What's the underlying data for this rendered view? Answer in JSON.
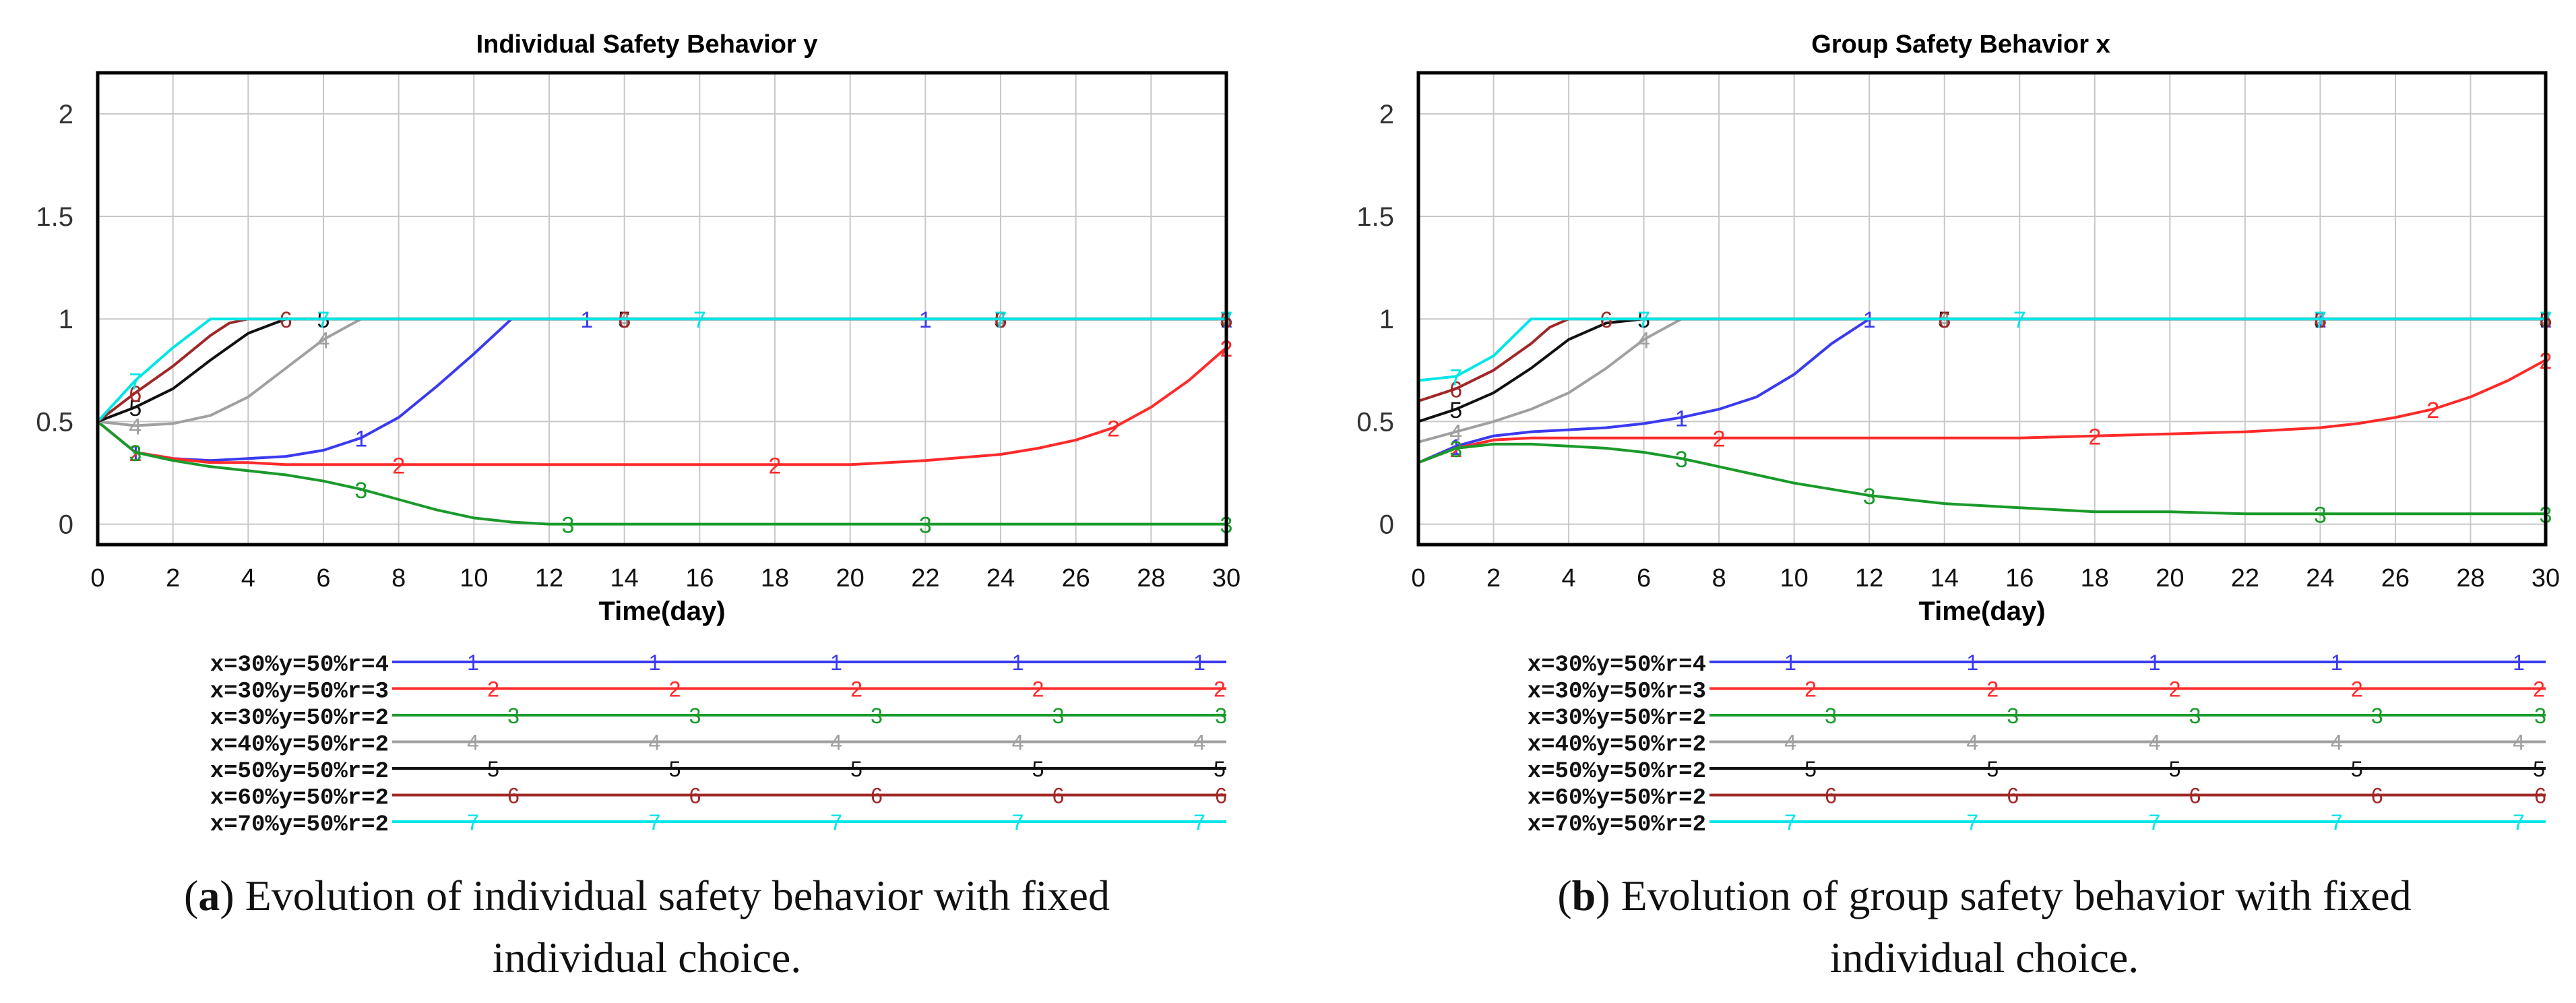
{
  "chart_data": [
    {
      "type": "line",
      "title": "Individual Safety Behavior y",
      "xlabel": "Time(day)",
      "ylabel": "",
      "xlim": [
        0,
        30
      ],
      "ylim": [
        -0.1,
        2.2
      ],
      "x_ticks": [
        "0",
        "2",
        "4",
        "6",
        "8",
        "10",
        "12",
        "14",
        "16",
        "18",
        "20",
        "22",
        "24",
        "26",
        "28",
        "30"
      ],
      "y_ticks": [
        "0",
        "0.5",
        "1",
        "1.5",
        "2"
      ],
      "caption_letter": "a",
      "caption_text": " Evolution of individual safety behavior with fixed individual choice.",
      "caption_lines": [
        "Evolution of individual safety behavior with fixed",
        "individual choice."
      ],
      "series": [
        {
          "id": "1",
          "name": "x=30%y=50%r=4",
          "color": "#3a3af0",
          "x": [
            0,
            1,
            2,
            3,
            4,
            5,
            6,
            7,
            8,
            9,
            10,
            11,
            12,
            13,
            14,
            15,
            16,
            18,
            20,
            22,
            24,
            26,
            28,
            30
          ],
          "y": [
            0.5,
            0.35,
            0.32,
            0.31,
            0.32,
            0.33,
            0.36,
            0.42,
            0.52,
            0.67,
            0.83,
            1.0,
            1.0,
            1.0,
            1.0,
            1.0,
            1.0,
            1.0,
            1.0,
            1.0,
            1.0,
            1.0,
            1.0,
            1.0
          ]
        },
        {
          "id": "2",
          "name": "x=30%y=50%r=3",
          "color": "#ff2a2a",
          "x": [
            0,
            1,
            2,
            3,
            4,
            5,
            6,
            8,
            10,
            12,
            14,
            16,
            18,
            20,
            22,
            24,
            25,
            26,
            27,
            28,
            29,
            30
          ],
          "y": [
            0.5,
            0.35,
            0.32,
            0.3,
            0.3,
            0.29,
            0.29,
            0.29,
            0.29,
            0.29,
            0.29,
            0.29,
            0.29,
            0.29,
            0.31,
            0.34,
            0.37,
            0.41,
            0.47,
            0.57,
            0.7,
            0.86
          ]
        },
        {
          "id": "3",
          "name": "x=30%y=50%r=2",
          "color": "#1a9a2a",
          "x": [
            0,
            1,
            2,
            3,
            4,
            5,
            6,
            7,
            8,
            9,
            10,
            11,
            12,
            12.5,
            14,
            16,
            18,
            20,
            22,
            24,
            26,
            28,
            30
          ],
          "y": [
            0.5,
            0.35,
            0.31,
            0.28,
            0.26,
            0.24,
            0.21,
            0.17,
            0.12,
            0.07,
            0.03,
            0.01,
            0.0,
            0.0,
            0.0,
            0.0,
            0.0,
            0.0,
            0.0,
            0.0,
            0.0,
            0.0,
            0.0
          ]
        },
        {
          "id": "4",
          "name": "x=40%y=50%r=2",
          "color": "#a0a0a0",
          "x": [
            0,
            1,
            2,
            3,
            4,
            5,
            6,
            7,
            8,
            10,
            12,
            14,
            16,
            18,
            20,
            22,
            24,
            26,
            28,
            30
          ],
          "y": [
            0.5,
            0.48,
            0.49,
            0.53,
            0.62,
            0.76,
            0.9,
            1.0,
            1.0,
            1.0,
            1.0,
            1.0,
            1.0,
            1.0,
            1.0,
            1.0,
            1.0,
            1.0,
            1.0,
            1.0
          ]
        },
        {
          "id": "5",
          "name": "x=50%y=50%r=2",
          "color": "#111111",
          "x": [
            0,
            1,
            2,
            3,
            4,
            5,
            6,
            7,
            8,
            10,
            12,
            14,
            16,
            18,
            20,
            22,
            24,
            26,
            28,
            30
          ],
          "y": [
            0.5,
            0.57,
            0.66,
            0.8,
            0.93,
            1.0,
            1.0,
            1.0,
            1.0,
            1.0,
            1.0,
            1.0,
            1.0,
            1.0,
            1.0,
            1.0,
            1.0,
            1.0,
            1.0,
            1.0
          ]
        },
        {
          "id": "6",
          "name": "x=60%y=50%r=2",
          "color": "#a02828",
          "x": [
            0,
            1,
            2,
            3,
            3.5,
            4,
            5,
            6,
            8,
            10,
            12,
            14,
            16,
            18,
            20,
            22,
            24,
            26,
            28,
            30
          ],
          "y": [
            0.5,
            0.64,
            0.77,
            0.92,
            0.98,
            1.0,
            1.0,
            1.0,
            1.0,
            1.0,
            1.0,
            1.0,
            1.0,
            1.0,
            1.0,
            1.0,
            1.0,
            1.0,
            1.0,
            1.0
          ]
        },
        {
          "id": "7",
          "name": "x=70%y=50%r=2",
          "color": "#00e6e6",
          "x": [
            0,
            1,
            2,
            3,
            4,
            6,
            8,
            10,
            12,
            14,
            16,
            18,
            20,
            22,
            24,
            26,
            28,
            30
          ],
          "y": [
            0.5,
            0.7,
            0.86,
            1.0,
            1.0,
            1.0,
            1.0,
            1.0,
            1.0,
            1.0,
            1.0,
            1.0,
            1.0,
            1.0,
            1.0,
            1.0,
            1.0,
            1.0
          ]
        }
      ]
    },
    {
      "type": "line",
      "title": "Group Safety Behavior x",
      "xlabel": "Time(day)",
      "ylabel": "",
      "xlim": [
        0,
        30
      ],
      "ylim": [
        -0.1,
        2.2
      ],
      "x_ticks": [
        "0",
        "2",
        "4",
        "6",
        "8",
        "10",
        "12",
        "14",
        "16",
        "18",
        "20",
        "22",
        "24",
        "26",
        "28",
        "30"
      ],
      "y_ticks": [
        "0",
        "0.5",
        "1",
        "1.5",
        "2"
      ],
      "caption_letter": "b",
      "caption_text": " Evolution of group safety behavior with fixed individual choice.",
      "caption_lines": [
        "Evolution of group safety behavior with fixed",
        "individual choice."
      ],
      "series": [
        {
          "id": "1",
          "name": "x=30%y=50%r=4",
          "color": "#3a3af0",
          "x": [
            0,
            1,
            2,
            3,
            4,
            5,
            6,
            7,
            8,
            9,
            10,
            11,
            12,
            14,
            16,
            18,
            20,
            22,
            24,
            26,
            28,
            30
          ],
          "y": [
            0.3,
            0.38,
            0.43,
            0.45,
            0.46,
            0.47,
            0.49,
            0.52,
            0.56,
            0.62,
            0.73,
            0.88,
            1.0,
            1.0,
            1.0,
            1.0,
            1.0,
            1.0,
            1.0,
            1.0,
            1.0,
            1.0
          ]
        },
        {
          "id": "2",
          "name": "x=30%y=50%r=3",
          "color": "#ff2a2a",
          "x": [
            0,
            1,
            2,
            3,
            4,
            5,
            6,
            8,
            10,
            12,
            14,
            16,
            18,
            20,
            22,
            24,
            25,
            26,
            27,
            28,
            29,
            30
          ],
          "y": [
            0.3,
            0.37,
            0.41,
            0.42,
            0.42,
            0.42,
            0.42,
            0.42,
            0.42,
            0.42,
            0.42,
            0.42,
            0.43,
            0.44,
            0.45,
            0.47,
            0.49,
            0.52,
            0.56,
            0.62,
            0.7,
            0.8
          ]
        },
        {
          "id": "3",
          "name": "x=30%y=50%r=2",
          "color": "#1a9a2a",
          "x": [
            0,
            1,
            2,
            3,
            4,
            5,
            6,
            7,
            8,
            9,
            10,
            11,
            12,
            14,
            16,
            18,
            20,
            22,
            24,
            26,
            28,
            30
          ],
          "y": [
            0.3,
            0.37,
            0.39,
            0.39,
            0.38,
            0.37,
            0.35,
            0.32,
            0.28,
            0.24,
            0.2,
            0.17,
            0.14,
            0.1,
            0.08,
            0.06,
            0.06,
            0.05,
            0.05,
            0.05,
            0.05,
            0.05
          ]
        },
        {
          "id": "4",
          "name": "x=40%y=50%r=2",
          "color": "#a0a0a0",
          "x": [
            0,
            1,
            2,
            3,
            4,
            5,
            6,
            7,
            8,
            10,
            12,
            14,
            16,
            18,
            20,
            22,
            24,
            26,
            28,
            30
          ],
          "y": [
            0.4,
            0.45,
            0.5,
            0.56,
            0.64,
            0.76,
            0.9,
            1.0,
            1.0,
            1.0,
            1.0,
            1.0,
            1.0,
            1.0,
            1.0,
            1.0,
            1.0,
            1.0,
            1.0,
            1.0
          ]
        },
        {
          "id": "5",
          "name": "x=50%y=50%r=2",
          "color": "#111111",
          "x": [
            0,
            1,
            2,
            3,
            4,
            5,
            6,
            7,
            8,
            10,
            12,
            14,
            16,
            18,
            20,
            22,
            24,
            26,
            28,
            30
          ],
          "y": [
            0.5,
            0.56,
            0.64,
            0.76,
            0.9,
            0.98,
            1.0,
            1.0,
            1.0,
            1.0,
            1.0,
            1.0,
            1.0,
            1.0,
            1.0,
            1.0,
            1.0,
            1.0,
            1.0,
            1.0
          ]
        },
        {
          "id": "6",
          "name": "x=60%y=50%r=2",
          "color": "#a02828",
          "x": [
            0,
            1,
            2,
            3,
            3.5,
            4,
            5,
            6,
            8,
            10,
            12,
            14,
            16,
            18,
            20,
            22,
            24,
            26,
            28,
            30
          ],
          "y": [
            0.6,
            0.66,
            0.75,
            0.88,
            0.96,
            1.0,
            1.0,
            1.0,
            1.0,
            1.0,
            1.0,
            1.0,
            1.0,
            1.0,
            1.0,
            1.0,
            1.0,
            1.0,
            1.0,
            1.0
          ]
        },
        {
          "id": "7",
          "name": "x=70%y=50%r=2",
          "color": "#00e6e6",
          "x": [
            0,
            1,
            2,
            3,
            4,
            6,
            8,
            10,
            12,
            14,
            16,
            18,
            20,
            22,
            24,
            26,
            28,
            30
          ],
          "y": [
            0.7,
            0.72,
            0.82,
            1.0,
            1.0,
            1.0,
            1.0,
            1.0,
            1.0,
            1.0,
            1.0,
            1.0,
            1.0,
            1.0,
            1.0,
            1.0,
            1.0,
            1.0
          ]
        }
      ]
    }
  ]
}
